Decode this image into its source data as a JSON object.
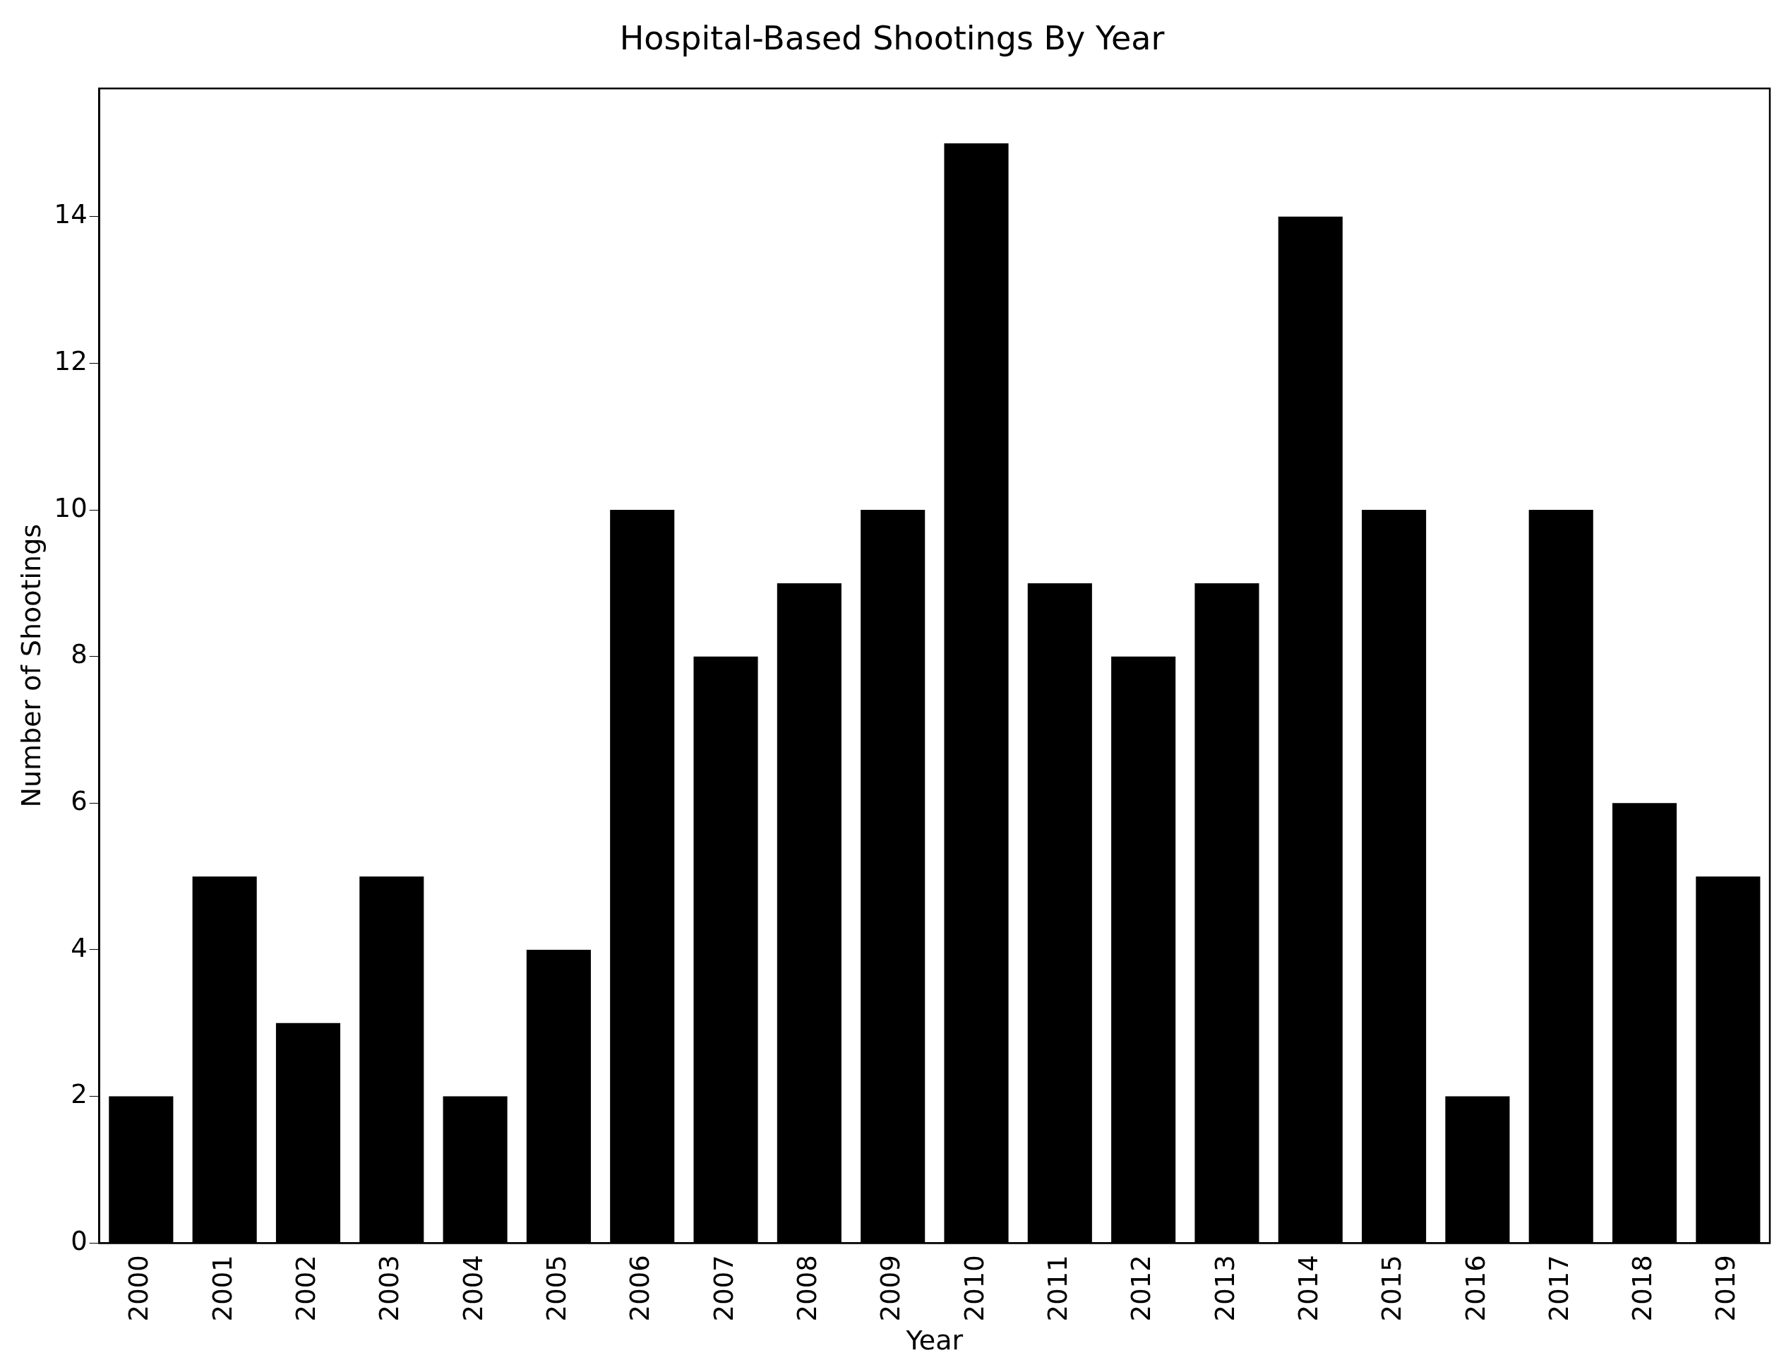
{
  "chart_data": {
    "type": "bar",
    "title": "Hospital-Based Shootings By Year",
    "xlabel": "Year",
    "ylabel": "Number of Shootings",
    "categories": [
      "2000",
      "2001",
      "2002",
      "2003",
      "2004",
      "2005",
      "2006",
      "2007",
      "2008",
      "2009",
      "2010",
      "2011",
      "2012",
      "2013",
      "2014",
      "2015",
      "2016",
      "2017",
      "2018",
      "2019"
    ],
    "values": [
      2,
      5,
      3,
      5,
      2,
      4,
      10,
      8,
      9,
      10,
      15,
      9,
      8,
      9,
      14,
      10,
      2,
      10,
      6,
      5
    ],
    "color": "#000000",
    "ylim": [
      0,
      15.75
    ],
    "yticks": [
      0,
      2,
      4,
      6,
      8,
      10,
      12,
      14
    ],
    "grid": false,
    "legend": false
  }
}
